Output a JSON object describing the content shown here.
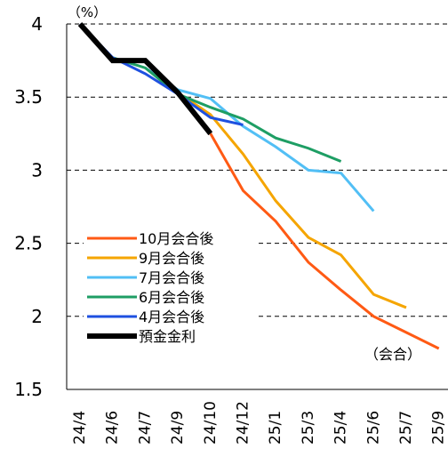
{
  "chart_data": {
    "type": "line",
    "y_unit_label": "（%）",
    "x_unit_label": "（会合）",
    "ylim": [
      1.5,
      4
    ],
    "yticks": [
      "4",
      "3.5",
      "3",
      "2.5",
      "2",
      "1.5"
    ],
    "ytick_values": [
      4,
      3.5,
      3,
      2.5,
      2,
      1.5
    ],
    "categories": [
      "24/4",
      "24/6",
      "24/7",
      "24/9",
      "24/10",
      "24/12",
      "25/1",
      "25/3",
      "25/4",
      "25/6",
      "25/7",
      "25/9"
    ],
    "grid": "dashed horizontal at 2, 2.5, 3, 3.5, 4",
    "legend_position": "lower-left",
    "series": [
      {
        "name": "10月会合後",
        "color": "#FF5A14",
        "values": [
          null,
          null,
          null,
          null,
          3.25,
          2.86,
          2.65,
          2.37,
          2.18,
          2.0,
          1.89,
          1.78
        ]
      },
      {
        "name": "9月会合後",
        "color": "#F5A500",
        "values": [
          null,
          null,
          null,
          3.53,
          3.38,
          3.11,
          2.79,
          2.54,
          2.42,
          2.15,
          2.06,
          null
        ]
      },
      {
        "name": "7月会合後",
        "color": "#52BFF5",
        "values": [
          null,
          null,
          3.7,
          3.55,
          3.49,
          3.3,
          3.16,
          3.0,
          2.98,
          2.72,
          null,
          null
        ]
      },
      {
        "name": "6月会合後",
        "color": "#1E9E64",
        "values": [
          null,
          3.77,
          3.7,
          3.52,
          3.43,
          3.35,
          3.22,
          3.15,
          3.06,
          null,
          null,
          null
        ]
      },
      {
        "name": "4月会合後",
        "color": "#1E50E0",
        "values": [
          4.0,
          3.77,
          3.66,
          3.52,
          3.36,
          3.31,
          null,
          null,
          null,
          null,
          null,
          null
        ]
      },
      {
        "name": "預金金利",
        "color": "#000000",
        "values": [
          4.0,
          3.75,
          3.75,
          3.53,
          3.25,
          null,
          null,
          null,
          null,
          null,
          null,
          null
        ]
      }
    ]
  }
}
